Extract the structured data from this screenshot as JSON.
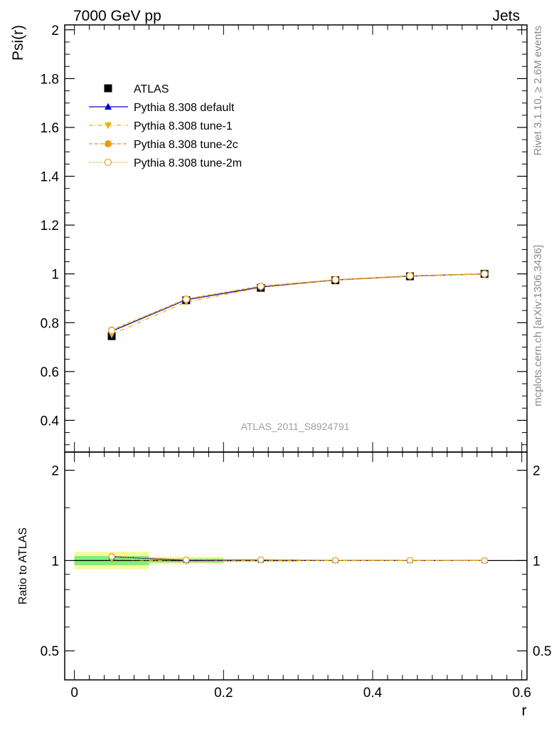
{
  "header": {
    "left": "7000 GeV pp",
    "right": "Jets"
  },
  "side_text": {
    "rivet": "Rivet 3.1.10, ≥ 2.6M events",
    "mcplots": "mcplots.cern.ch [arXiv:1306.3436]"
  },
  "analysis_label": "ATLAS_2011_S8924791",
  "colors": {
    "atlas": "#000000",
    "default": "#0000cc",
    "tune1": "#e8b200",
    "tune2c": "#e89a10",
    "tune2m": "#e8a030",
    "band_inner": "#7cf07c",
    "band_outer": "#f8f8a0"
  },
  "chart_data": [
    {
      "type": "line",
      "panel": "main",
      "xlabel": "",
      "ylabel": "Psi(r)",
      "xlim": [
        -0.013,
        0.607
      ],
      "ylim": [
        0.27,
        2.02
      ],
      "y_ticks": [
        0.4,
        0.6,
        0.8,
        1,
        1.2,
        1.4,
        1.6,
        1.8,
        2
      ],
      "y_tick_labels": [
        "0.4",
        "0.6",
        "0.8",
        "1",
        "1.2",
        "1.4",
        "1.6",
        "1.8",
        "2"
      ],
      "legend_placement": "top-left",
      "x": [
        0.05,
        0.15,
        0.25,
        0.35,
        0.45,
        0.55
      ],
      "series": [
        {
          "name": "ATLAS",
          "values": [
            0.745,
            0.892,
            0.943,
            0.974,
            0.99,
            1.0
          ],
          "marker": "square",
          "style": "points"
        },
        {
          "name": "Pythia 8.308 default",
          "values": [
            0.765,
            0.894,
            0.946,
            0.975,
            0.991,
            1.0
          ],
          "marker": "triangle-up",
          "style": "solid"
        },
        {
          "name": "Pythia 8.308 tune-1",
          "values": [
            0.752,
            0.885,
            0.944,
            0.974,
            0.99,
            1.0
          ],
          "marker": "triangle-down",
          "style": "dashdot"
        },
        {
          "name": "Pythia 8.308 tune-2c",
          "values": [
            0.77,
            0.897,
            0.95,
            0.976,
            0.992,
            1.0
          ],
          "marker": "circle",
          "style": "dashed"
        },
        {
          "name": "Pythia 8.308 tune-2m",
          "values": [
            0.768,
            0.896,
            0.949,
            0.976,
            0.992,
            1.0
          ],
          "marker": "circle-open",
          "style": "dotted"
        }
      ]
    },
    {
      "type": "line",
      "panel": "ratio",
      "xlabel": "r",
      "ylabel": "Ratio to ATLAS",
      "xlim": [
        -0.013,
        0.607
      ],
      "ylim": [
        0.4,
        2.3
      ],
      "log_y": true,
      "x_ticks": [
        0,
        0.2,
        0.4,
        0.6
      ],
      "x_tick_labels": [
        "0",
        "0.2",
        "0.4",
        "0.6"
      ],
      "y_ticks": [
        0.5,
        1,
        2
      ],
      "y_tick_labels": [
        "0.5",
        "1",
        "2"
      ],
      "x_bins": [
        [
          0.0,
          0.1
        ],
        [
          0.1,
          0.2
        ],
        [
          0.2,
          0.3
        ],
        [
          0.3,
          0.4
        ],
        [
          0.4,
          0.5
        ],
        [
          0.5,
          0.6
        ]
      ],
      "band_inner": [
        [
          0.965,
          1.035
        ],
        [
          0.985,
          1.015
        ],
        [
          0.993,
          1.007
        ],
        [
          0.997,
          1.003
        ],
        [
          0.998,
          1.002
        ],
        [
          0.999,
          1.001
        ]
      ],
      "band_outer": [
        [
          0.935,
          1.07
        ],
        [
          0.972,
          1.03
        ],
        [
          0.988,
          1.012
        ],
        [
          0.995,
          1.005
        ],
        [
          0.997,
          1.003
        ],
        [
          0.999,
          1.001
        ]
      ],
      "x": [
        0.05,
        0.15,
        0.25,
        0.35,
        0.45,
        0.55
      ],
      "series": [
        {
          "name": "Pythia 8.308 default",
          "values": [
            1.03,
            1.002,
            1.003,
            1.001,
            1.001,
            1.0
          ]
        },
        {
          "name": "Pythia 8.308 tune-1",
          "values": [
            1.01,
            0.992,
            1.001,
            1.0,
            1.0,
            1.0
          ]
        },
        {
          "name": "Pythia 8.308 tune-2c",
          "values": [
            1.034,
            1.006,
            1.007,
            1.002,
            1.002,
            1.0
          ]
        },
        {
          "name": "Pythia 8.308 tune-2m",
          "values": [
            1.031,
            1.005,
            1.006,
            1.002,
            1.002,
            1.0
          ]
        }
      ]
    }
  ]
}
